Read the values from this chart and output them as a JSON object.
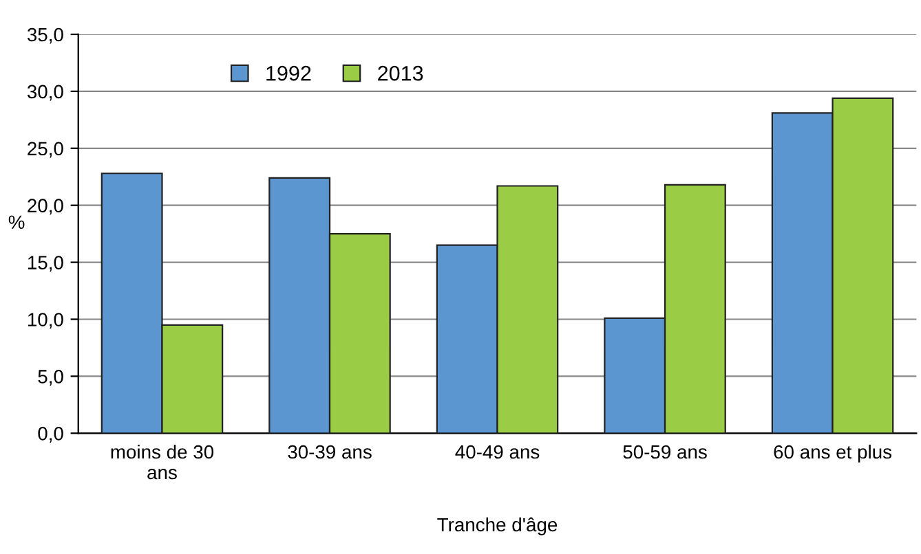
{
  "chart_data": {
    "type": "bar",
    "xlabel": "Tranche d'âge",
    "ylabel": "%",
    "categories": [
      "moins de 30\nans",
      "30-39 ans",
      "40-49 ans",
      "50-59 ans",
      "60 ans et plus"
    ],
    "series": [
      {
        "name": "1992",
        "color": "#5b96d0",
        "values": [
          22.8,
          22.4,
          16.5,
          10.1,
          28.1
        ]
      },
      {
        "name": "2013",
        "color": "#9acd45",
        "values": [
          9.5,
          17.5,
          21.7,
          21.8,
          29.4
        ]
      }
    ],
    "ylim": [
      0,
      35
    ],
    "yticks": [
      {
        "value": 0,
        "label": "0,0"
      },
      {
        "value": 5,
        "label": "5,0"
      },
      {
        "value": 10,
        "label": "10,0"
      },
      {
        "value": 15,
        "label": "15,0"
      },
      {
        "value": 20,
        "label": "20,0"
      },
      {
        "value": 25,
        "label": "25,0"
      },
      {
        "value": 30,
        "label": "30,0"
      },
      {
        "value": 35,
        "label": "35,0"
      }
    ],
    "grid": "y",
    "legend": "top left"
  }
}
